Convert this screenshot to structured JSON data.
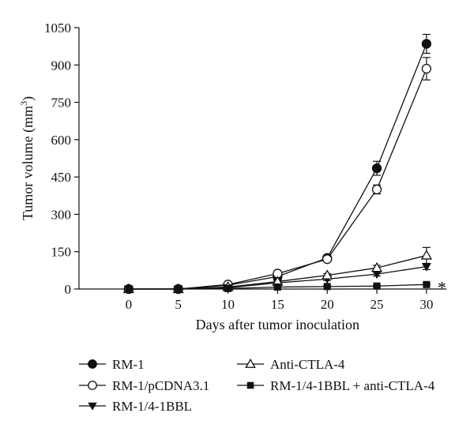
{
  "chart_data": {
    "type": "line",
    "xlabel": "Days after tumor inoculation",
    "ylabel": "Tumor volume (mm",
    "ylabel_sup": "3",
    "ylabel_close": ")",
    "x": [
      0,
      5,
      10,
      15,
      20,
      25,
      30
    ],
    "x_ticks": [
      "0",
      "5",
      "10",
      "15",
      "20",
      "25",
      "30"
    ],
    "y_ticks": [
      "0",
      "150",
      "300",
      "450",
      "600",
      "750",
      "900",
      "1050"
    ],
    "xlim": [
      -5,
      32
    ],
    "ylim": [
      0,
      1050
    ],
    "grid": false,
    "legend_position": "bottom",
    "annotation": "*",
    "series": [
      {
        "name": "RM-1",
        "marker": "filled-circle",
        "values": [
          0,
          0,
          15,
          50,
          125,
          485,
          985
        ],
        "errors": [
          0,
          0,
          3,
          6,
          8,
          28,
          38
        ]
      },
      {
        "name": "RM-1/pCDNA3.1",
        "marker": "open-circle",
        "values": [
          0,
          0,
          18,
          62,
          120,
          400,
          885
        ],
        "errors": [
          0,
          0,
          3,
          6,
          8,
          18,
          45
        ]
      },
      {
        "name": "RM-1/4-1BBL",
        "marker": "filled-triangle-down",
        "values": [
          0,
          0,
          5,
          25,
          40,
          60,
          90
        ],
        "errors": [
          0,
          0,
          2,
          4,
          6,
          8,
          12
        ]
      },
      {
        "name": "Anti-CTLA-4",
        "marker": "open-triangle-up",
        "values": [
          0,
          0,
          8,
          30,
          55,
          85,
          135
        ],
        "errors": [
          0,
          0,
          2,
          5,
          7,
          10,
          32
        ]
      },
      {
        "name": "RM-1/4-1BBL + anti-CTLA-4",
        "marker": "filled-square",
        "values": [
          0,
          0,
          2,
          8,
          10,
          12,
          18
        ],
        "errors": [
          0,
          0,
          1,
          2,
          2,
          3,
          3
        ]
      }
    ]
  }
}
